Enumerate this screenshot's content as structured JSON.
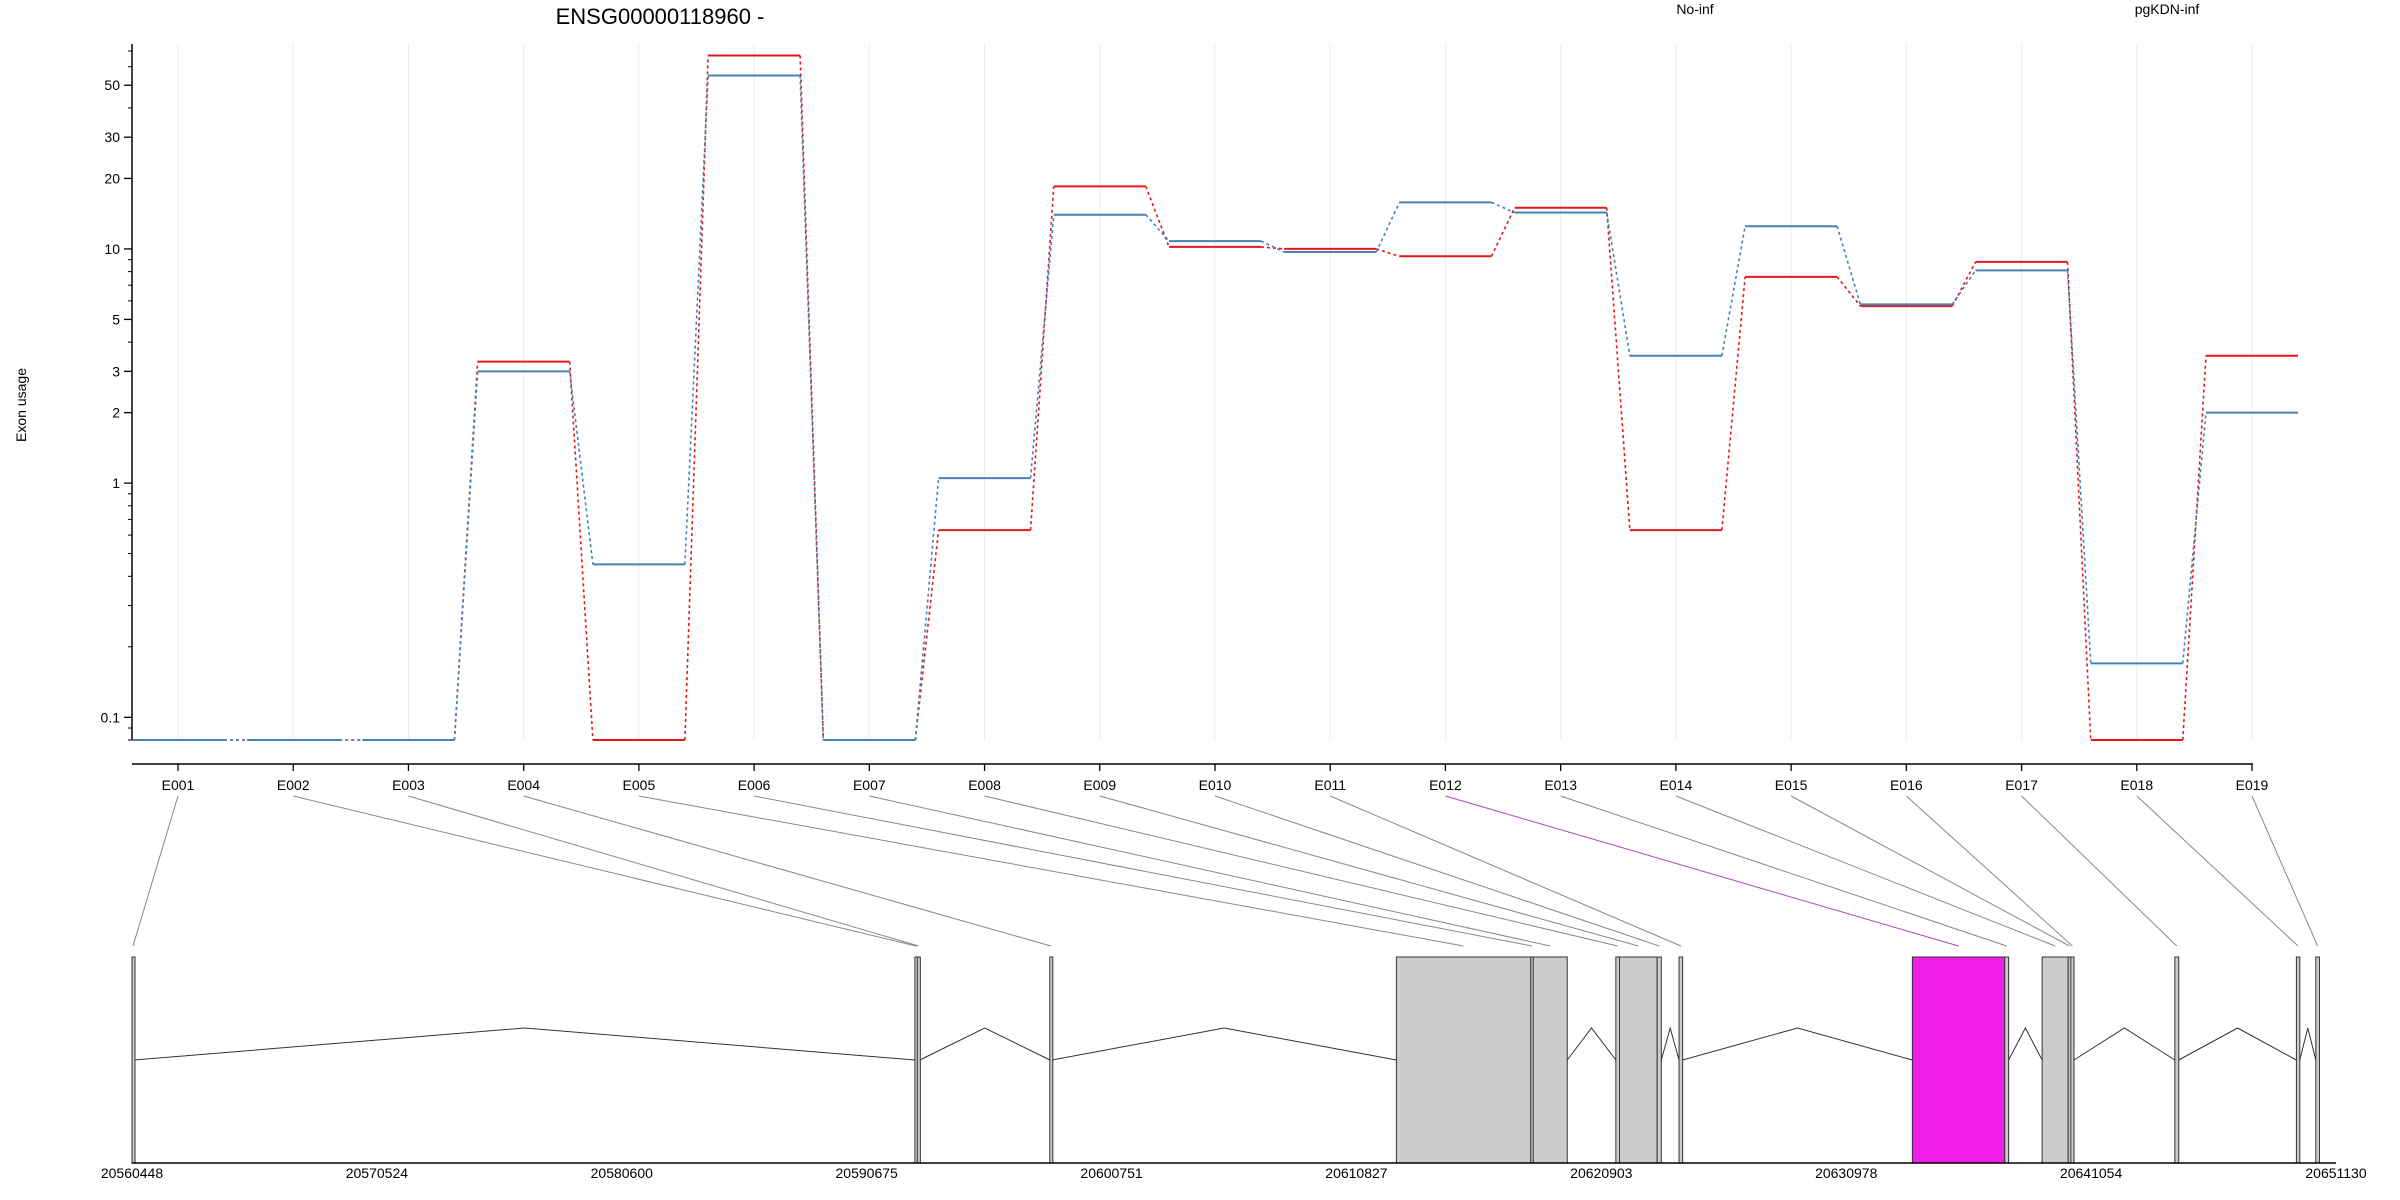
{
  "chart_data": {
    "type": "line",
    "title": "ENSG00000118960 -",
    "ylabel": "Exon usage",
    "xlabel": "",
    "yscale": "log",
    "ylim": [
      0.08,
      75
    ],
    "yticks": [
      {
        "v": 0.1,
        "label": "0.1"
      },
      {
        "v": 1,
        "label": "1"
      },
      {
        "v": 2,
        "label": "2"
      },
      {
        "v": 3,
        "label": "3"
      },
      {
        "v": 5,
        "label": "5"
      },
      {
        "v": 10,
        "label": "10"
      },
      {
        "v": 20,
        "label": "20"
      },
      {
        "v": 30,
        "label": "30"
      },
      {
        "v": 50,
        "label": "50"
      }
    ],
    "grid": true,
    "legend_placement": "top",
    "categories": [
      "E001",
      "E002",
      "E003",
      "E004",
      "E005",
      "E006",
      "E007",
      "E008",
      "E009",
      "E010",
      "E011",
      "E012",
      "E013",
      "E014",
      "E015",
      "E016",
      "E017",
      "E018",
      "E019"
    ],
    "series": [
      {
        "name": "No-inf",
        "color": "#e31a1c",
        "values": [
          0.08,
          0.08,
          0.08,
          3.3,
          0.08,
          67,
          0.08,
          0.63,
          18.5,
          10.2,
          10.0,
          9.3,
          15.0,
          0.63,
          7.6,
          5.7,
          8.8,
          0.08,
          3.5
        ]
      },
      {
        "name": "pgKDN-inf",
        "color": "#4682b4",
        "values": [
          0.08,
          0.08,
          0.08,
          3.0,
          0.45,
          55,
          0.08,
          1.05,
          14.0,
          10.8,
          9.7,
          15.8,
          14.3,
          3.5,
          12.5,
          5.8,
          8.1,
          0.17,
          2.0
        ]
      }
    ],
    "gene_model": {
      "coordinate_labels": [
        "20560448",
        "20570524",
        "20580600",
        "20590675",
        "20600751",
        "20610827",
        "20620903",
        "20630978",
        "20641054",
        "20651130"
      ],
      "coord_min": 20560448,
      "coord_max": 20651130,
      "exons": [
        {
          "id": "E001",
          "start": 20560448,
          "end": 20560530
        },
        {
          "id": "E002",
          "start": 20592660,
          "end": 20592760
        },
        {
          "id": "E003",
          "start": 20592760,
          "end": 20592860
        },
        {
          "id": "E004",
          "start": 20598210,
          "end": 20598300
        },
        {
          "id": "E005",
          "start": 20612470,
          "end": 20618000
        },
        {
          "id": "E006",
          "start": 20618000,
          "end": 20618100
        },
        {
          "id": "E007",
          "start": 20618100,
          "end": 20619500
        },
        {
          "id": "E008",
          "start": 20621500,
          "end": 20621650
        },
        {
          "id": "E009",
          "start": 20621650,
          "end": 20623200
        },
        {
          "id": "E010",
          "start": 20623200,
          "end": 20623370
        },
        {
          "id": "E011",
          "start": 20624100,
          "end": 20624250
        },
        {
          "id": "E012",
          "start": 20633700,
          "end": 20637500
        },
        {
          "id": "E013",
          "start": 20637500,
          "end": 20637660
        },
        {
          "id": "E014",
          "start": 20639040,
          "end": 20640110
        },
        {
          "id": "E015",
          "start": 20640110,
          "end": 20640220
        },
        {
          "id": "E016",
          "start": 20640220,
          "end": 20640350
        },
        {
          "id": "E017",
          "start": 20644500,
          "end": 20644660
        },
        {
          "id": "E018",
          "start": 20649500,
          "end": 20649640
        },
        {
          "id": "E019",
          "start": 20650300,
          "end": 20650450
        }
      ],
      "highlight_exon": "E012",
      "highlight_color": "#f01ee6",
      "exon_fill": "#cccccc"
    }
  }
}
